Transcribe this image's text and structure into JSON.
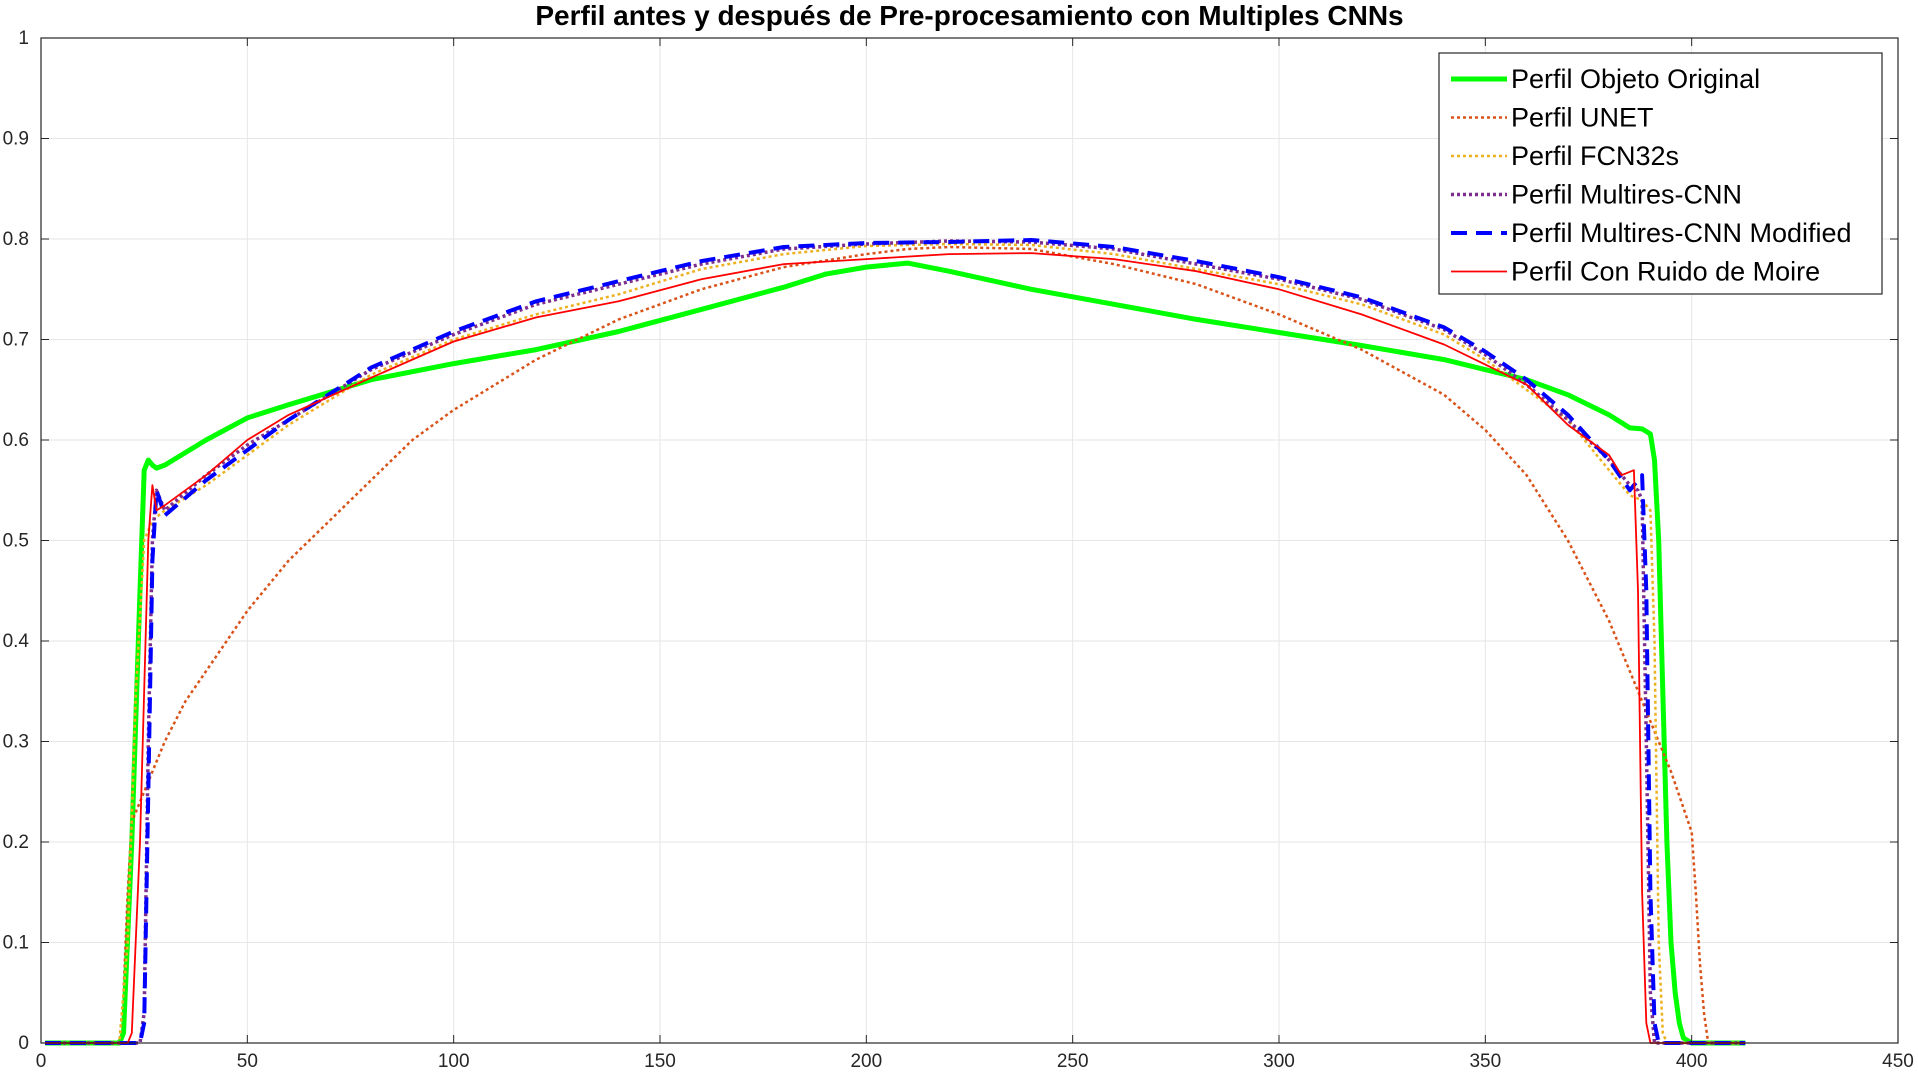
{
  "chart_data": {
    "type": "line",
    "title": "Perfil antes y después de Pre-procesamiento con Multiples CNNs",
    "xlabel": "",
    "ylabel": "",
    "xlim": [
      0,
      450
    ],
    "ylim": [
      0,
      1
    ],
    "xticks": [
      "0",
      "50",
      "100",
      "150",
      "200",
      "250",
      "300",
      "350",
      "400",
      "450"
    ],
    "yticks": [
      "0",
      "0.1",
      "0.2",
      "0.3",
      "0.4",
      "0.5",
      "0.6",
      "0.7",
      "0.8",
      "0.9",
      "1"
    ],
    "grid": true,
    "legend_position": "top-right",
    "series": [
      {
        "name": "Perfil Objeto Original",
        "color": "#00ff00",
        "style": "solid",
        "x": [
          1,
          19,
          20,
          22,
          24,
          25,
          26,
          27,
          28,
          30,
          40,
          50,
          60,
          80,
          100,
          120,
          140,
          160,
          180,
          190,
          200,
          210,
          220,
          240,
          260,
          280,
          300,
          320,
          340,
          360,
          370,
          380,
          385,
          388,
          390,
          391,
          392,
          393,
          394,
          395,
          396,
          397,
          398,
          400,
          413
        ],
        "y": [
          0,
          0,
          0.01,
          0.2,
          0.45,
          0.57,
          0.58,
          0.575,
          0.572,
          0.575,
          0.6,
          0.622,
          0.635,
          0.66,
          0.676,
          0.69,
          0.708,
          0.73,
          0.752,
          0.765,
          0.772,
          0.776,
          0.768,
          0.75,
          0.735,
          0.72,
          0.707,
          0.694,
          0.68,
          0.66,
          0.645,
          0.625,
          0.612,
          0.611,
          0.606,
          0.58,
          0.5,
          0.35,
          0.2,
          0.1,
          0.05,
          0.02,
          0.005,
          0,
          0
        ]
      },
      {
        "name": "Perfil UNET",
        "color": "#d95319",
        "style": "dotted",
        "x": [
          1,
          19,
          20,
          21,
          22,
          24,
          26,
          28,
          30,
          35,
          40,
          50,
          60,
          70,
          80,
          90,
          100,
          120,
          140,
          160,
          180,
          200,
          210,
          220,
          240,
          260,
          280,
          300,
          320,
          340,
          350,
          360,
          370,
          380,
          385,
          390,
          395,
          400,
          401,
          402,
          403,
          404,
          413
        ],
        "y": [
          0,
          0,
          0.05,
          0.15,
          0.22,
          0.24,
          0.26,
          0.28,
          0.3,
          0.34,
          0.37,
          0.43,
          0.48,
          0.52,
          0.56,
          0.6,
          0.63,
          0.68,
          0.72,
          0.75,
          0.772,
          0.785,
          0.79,
          0.792,
          0.79,
          0.775,
          0.755,
          0.725,
          0.69,
          0.645,
          0.61,
          0.565,
          0.5,
          0.42,
          0.37,
          0.32,
          0.27,
          0.21,
          0.15,
          0.08,
          0.03,
          0,
          0
        ]
      },
      {
        "name": "Perfil FCN32s",
        "color": "#edb120",
        "style": "dotted",
        "x": [
          1,
          19,
          21,
          23,
          25,
          27,
          30,
          40,
          50,
          60,
          80,
          100,
          120,
          140,
          160,
          180,
          200,
          220,
          240,
          260,
          280,
          300,
          320,
          340,
          350,
          360,
          370,
          380,
          385,
          388,
          390,
          391,
          392,
          393,
          394,
          413
        ],
        "y": [
          0,
          0,
          0.1,
          0.35,
          0.5,
          0.52,
          0.53,
          0.555,
          0.585,
          0.615,
          0.665,
          0.7,
          0.725,
          0.745,
          0.77,
          0.785,
          0.793,
          0.795,
          0.794,
          0.785,
          0.77,
          0.755,
          0.735,
          0.705,
          0.68,
          0.65,
          0.62,
          0.57,
          0.545,
          0.54,
          0.53,
          0.4,
          0.1,
          0.01,
          0,
          0
        ]
      },
      {
        "name": "Perfil Multires-CNN",
        "color": "#7e2f8e",
        "style": "dotted",
        "x": [
          1,
          24,
          25,
          26,
          27,
          28,
          30,
          40,
          50,
          60,
          80,
          100,
          120,
          140,
          160,
          180,
          200,
          220,
          240,
          260,
          280,
          300,
          320,
          340,
          350,
          360,
          370,
          380,
          385,
          387,
          388,
          389,
          390,
          391,
          413
        ],
        "y": [
          0,
          0,
          0.03,
          0.3,
          0.5,
          0.55,
          0.53,
          0.565,
          0.595,
          0.62,
          0.67,
          0.705,
          0.735,
          0.755,
          0.775,
          0.79,
          0.795,
          0.798,
          0.797,
          0.79,
          0.775,
          0.76,
          0.74,
          0.71,
          0.685,
          0.655,
          0.62,
          0.58,
          0.555,
          0.55,
          0.54,
          0.3,
          0.05,
          0,
          0
        ]
      },
      {
        "name": "Perfil Multires-CNN Modified",
        "color": "#0000ff",
        "style": "dashed",
        "x": [
          1,
          24,
          25,
          26,
          27,
          28,
          30,
          40,
          50,
          60,
          80,
          100,
          120,
          140,
          160,
          180,
          200,
          220,
          240,
          260,
          280,
          300,
          320,
          340,
          350,
          360,
          370,
          380,
          385,
          387,
          388,
          389,
          390,
          391,
          392,
          413
        ],
        "y": [
          0,
          0,
          0.02,
          0.25,
          0.48,
          0.55,
          0.525,
          0.56,
          0.59,
          0.62,
          0.672,
          0.708,
          0.738,
          0.758,
          0.778,
          0.792,
          0.796,
          0.797,
          0.799,
          0.792,
          0.778,
          0.762,
          0.742,
          0.712,
          0.688,
          0.66,
          0.625,
          0.58,
          0.55,
          0.56,
          0.565,
          0.45,
          0.15,
          0.02,
          0,
          0
        ]
      },
      {
        "name": "Perfil Con Ruido de Moire",
        "color": "#ff0000",
        "style": "solid",
        "x": [
          1,
          21,
          22,
          24,
          26,
          27,
          28,
          30,
          40,
          50,
          60,
          80,
          100,
          120,
          140,
          160,
          180,
          200,
          220,
          240,
          260,
          280,
          300,
          320,
          340,
          350,
          360,
          370,
          380,
          383,
          386,
          387,
          388,
          389,
          390,
          413
        ],
        "y": [
          0,
          0,
          0.01,
          0.2,
          0.5,
          0.555,
          0.53,
          0.535,
          0.565,
          0.6,
          0.625,
          0.662,
          0.698,
          0.722,
          0.738,
          0.76,
          0.775,
          0.78,
          0.785,
          0.786,
          0.78,
          0.768,
          0.75,
          0.725,
          0.695,
          0.675,
          0.655,
          0.615,
          0.585,
          0.565,
          0.57,
          0.45,
          0.15,
          0.02,
          0,
          0
        ]
      }
    ]
  }
}
